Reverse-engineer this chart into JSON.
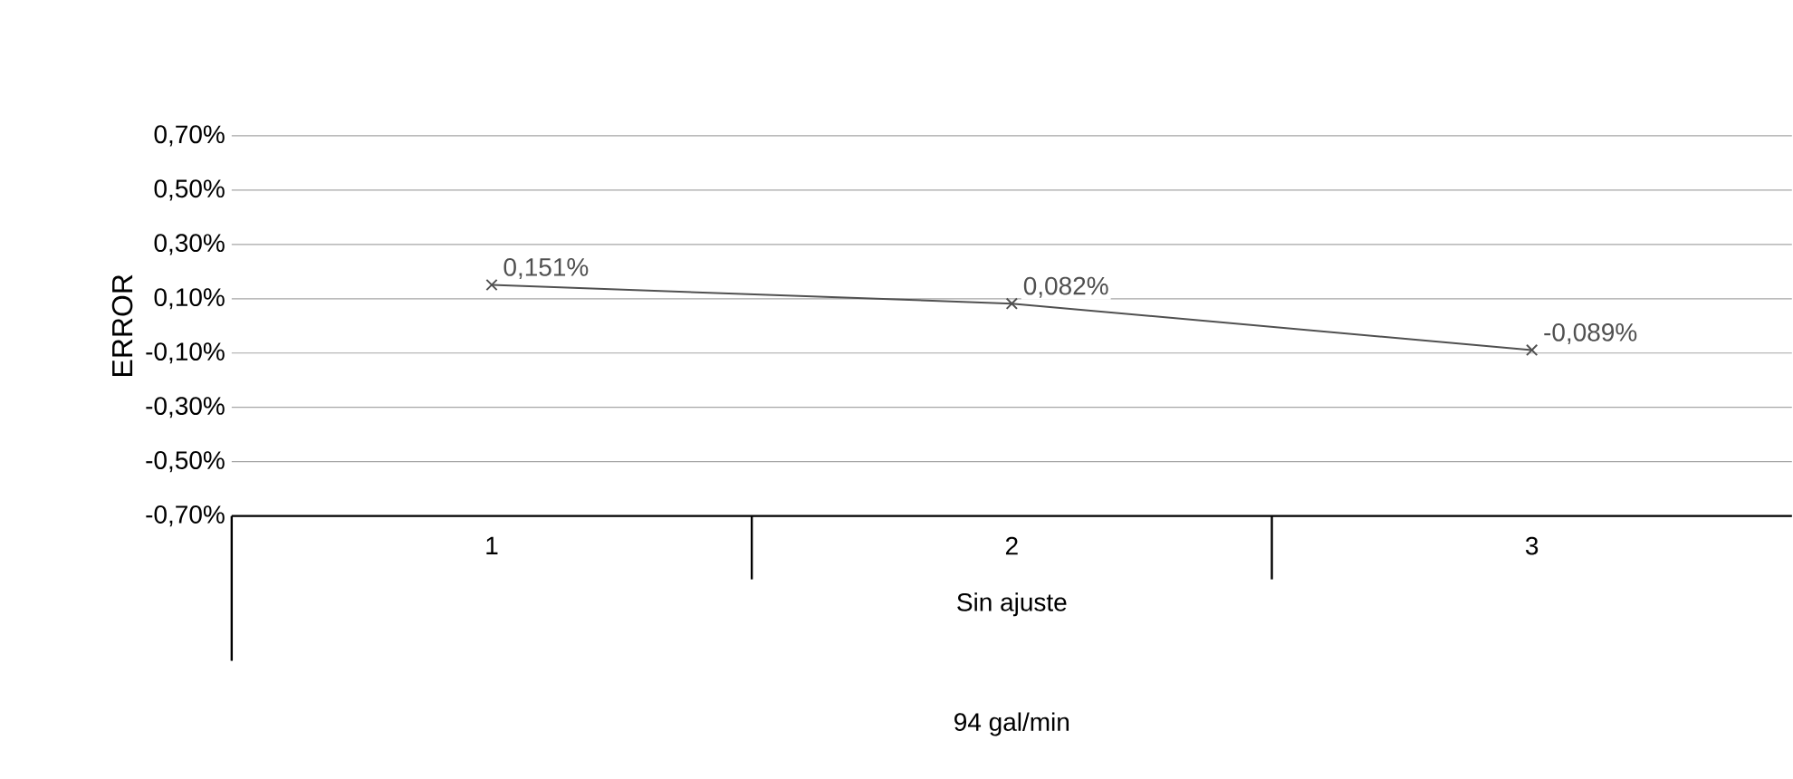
{
  "chart_data": {
    "type": "line",
    "ylabel": "ERROR",
    "xlabel": "Sin ajuste",
    "annotations": [
      "94 gal/min"
    ],
    "categories": [
      "1",
      "2",
      "3"
    ],
    "series": [
      {
        "color": "#505050",
        "values": [
          0.151,
          0.082,
          -0.089
        ],
        "value_labels": [
          "0,151%",
          "0,082%",
          "-0,089%"
        ]
      }
    ],
    "ylim": [
      -0.7,
      0.7
    ],
    "yticks": [
      {
        "value": -0.7,
        "label": "-0,70%"
      },
      {
        "value": -0.5,
        "label": "-0,50%"
      },
      {
        "value": -0.3,
        "label": "-0,30%"
      },
      {
        "value": -0.1,
        "label": "-0,10%"
      },
      {
        "value": 0.1,
        "label": "0,10%"
      },
      {
        "value": 0.3,
        "label": "0,30%"
      },
      {
        "value": 0.5,
        "label": "0,50%"
      },
      {
        "value": 0.7,
        "label": "0,70%"
      }
    ],
    "grid": "y",
    "marker": "cross",
    "line_style": "solid"
  }
}
